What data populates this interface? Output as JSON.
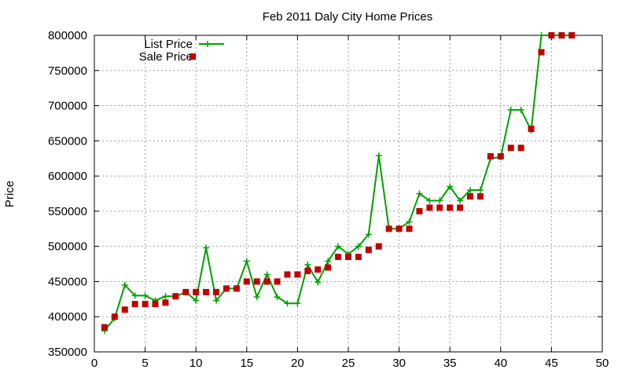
{
  "chart_data": {
    "type": "line",
    "title": "Feb 2011 Daly City Home Prices",
    "xlabel": "",
    "ylabel": "Price",
    "xlim": [
      0,
      50
    ],
    "ylim": [
      350000,
      800000
    ],
    "xticks": [
      0,
      5,
      10,
      15,
      20,
      25,
      30,
      35,
      40,
      45,
      50
    ],
    "yticks": [
      350000,
      400000,
      450000,
      500000,
      550000,
      600000,
      650000,
      700000,
      750000,
      800000
    ],
    "grid": true,
    "legend_position": "top-left",
    "series": [
      {
        "name": "List Price",
        "style": "line-plus",
        "color": "#00a000",
        "x": [
          1,
          2,
          3,
          4,
          5,
          6,
          7,
          8,
          9,
          10,
          11,
          12,
          13,
          14,
          15,
          16,
          17,
          18,
          19,
          20,
          21,
          22,
          23,
          24,
          25,
          26,
          27,
          28,
          29,
          30,
          31,
          32,
          33,
          34,
          35,
          36,
          37,
          38,
          39,
          40,
          41,
          42,
          43,
          44,
          45,
          46,
          47
        ],
        "y": [
          380000,
          398000,
          445000,
          430000,
          430000,
          423000,
          429000,
          429000,
          435000,
          423000,
          498000,
          423000,
          440000,
          440000,
          479000,
          428000,
          460000,
          428000,
          419000,
          419000,
          474000,
          449000,
          479000,
          500000,
          489000,
          500000,
          517000,
          629000,
          525000,
          525000,
          535000,
          575000,
          565000,
          565000,
          585000,
          565000,
          580000,
          580000,
          625000,
          627000,
          694000,
          694000,
          665000,
          800000,
          800000,
          800000,
          800000
        ]
      },
      {
        "name": "Sale Price",
        "style": "square",
        "color": "#c00000",
        "x": [
          1,
          2,
          3,
          4,
          5,
          6,
          7,
          8,
          9,
          10,
          11,
          12,
          13,
          14,
          15,
          16,
          17,
          18,
          19,
          20,
          21,
          22,
          23,
          24,
          25,
          26,
          27,
          28,
          29,
          30,
          31,
          32,
          33,
          34,
          35,
          36,
          37,
          38,
          39,
          40,
          41,
          42,
          43,
          44,
          45,
          46,
          47
        ],
        "y": [
          385000,
          400000,
          410000,
          418000,
          418000,
          418000,
          420000,
          429000,
          435000,
          435000,
          435000,
          435000,
          440000,
          440000,
          450000,
          450000,
          450000,
          450000,
          460000,
          460000,
          465000,
          467000,
          470000,
          485000,
          485000,
          485000,
          495000,
          500000,
          525000,
          525000,
          525000,
          550000,
          555000,
          555000,
          555000,
          555000,
          571000,
          571000,
          628000,
          628000,
          640000,
          640000,
          667000,
          776000,
          800000,
          800000,
          800000
        ]
      }
    ]
  }
}
